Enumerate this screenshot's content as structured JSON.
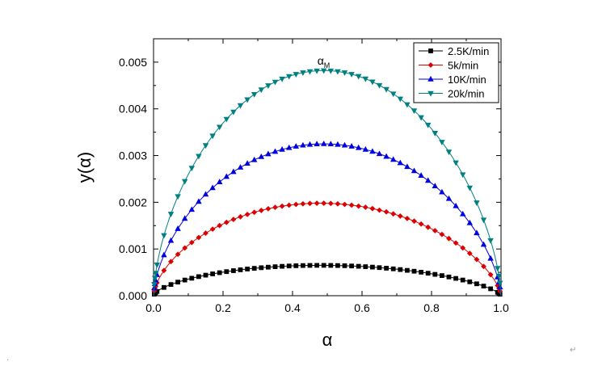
{
  "chart_data": {
    "type": "scatter",
    "title": "",
    "xlabel": "α",
    "ylabel": "y(α)",
    "xlim": [
      0.0,
      1.0
    ],
    "ylim": [
      0.0,
      0.0055
    ],
    "x_ticks": [
      "0.0",
      "0.2",
      "0.4",
      "0.6",
      "0.8",
      "1.0"
    ],
    "y_ticks": [
      "0.000",
      "0.001",
      "0.002",
      "0.003",
      "0.004",
      "0.005"
    ],
    "grid": false,
    "legend_position": "top-right",
    "annotation": {
      "text": "α",
      "subscript": "M",
      "x": 0.49,
      "y": 0.005
    },
    "series": [
      {
        "name": "2.5K/min",
        "color": "#000000",
        "marker": "square",
        "peak": 0.00065,
        "peak_x": 0.48
      },
      {
        "name": "5k/min",
        "color": "#dd0000",
        "marker": "diamond",
        "peak": 0.00198,
        "peak_x": 0.48
      },
      {
        "name": "10K/min",
        "color": "#0000dd",
        "marker": "triangle-up",
        "peak": 0.00325,
        "peak_x": 0.49
      },
      {
        "name": "20k/min",
        "color": "#008080",
        "marker": "triangle-down",
        "peak": 0.00482,
        "peak_x": 0.49
      }
    ]
  },
  "footer_marks": {
    "left": ".",
    "right": "↵"
  }
}
